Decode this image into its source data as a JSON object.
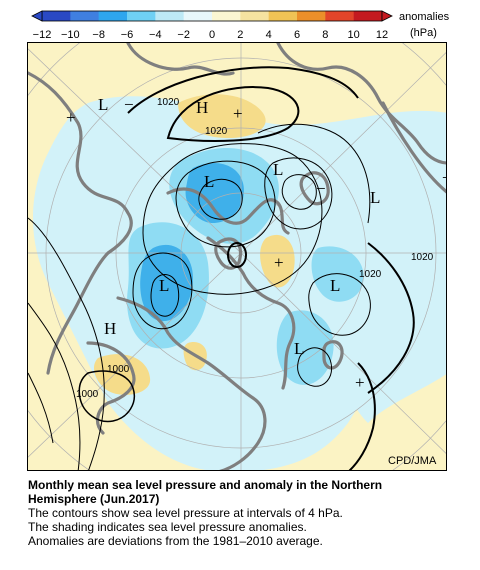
{
  "colorbar": {
    "ticks": [
      "−12",
      "−10",
      "−8",
      "−6",
      "−4",
      "−2",
      "0",
      "2",
      "4",
      "6",
      "8",
      "10",
      "12"
    ],
    "label_line1": "anomalies",
    "label_line2": "(hPa)",
    "colors": [
      "#2a49c4",
      "#3f7fe0",
      "#2ea6ee",
      "#6fd0f4",
      "#bde9f6",
      "#e8f7fb",
      "#fbf6d2",
      "#f5e3a0",
      "#f0c355",
      "#eb8f2a",
      "#e2452a",
      "#c41a20"
    ]
  },
  "map": {
    "labels": {
      "low_nw": "L",
      "high_n": "H",
      "plus_nw": "+",
      "minus_nw": "−",
      "plus_n": "+",
      "low_center": "L",
      "low_ne_upper": "L",
      "low_east": "L",
      "minus_east": "−",
      "plus_edge_east": "+",
      "low_west": "L",
      "plus_center_south": "+",
      "low_pacific": "L",
      "low_south": "L",
      "high_west": "H",
      "plus_south": "+"
    },
    "contour_labels": {
      "c1020_north": "1020",
      "c1020_ring": "1020",
      "c1020_east": "1020",
      "c1020_pacific": "1020",
      "c1000_a": "1000",
      "c1000_b": "1000"
    },
    "credit": "CPD/JMA",
    "colors": {
      "land_outline": "#7f7f7f",
      "neutral": "#ffffff",
      "weak_negative": "#d2f2f9",
      "negative": "#8fdcf3",
      "strong_negative": "#3fb0ea",
      "weak_positive": "#fbf3c4",
      "positive": "#f5dc8a"
    }
  },
  "caption": {
    "title_line1": "Monthly mean sea level pressure and anomaly in the Northern",
    "title_line2": "Hemisphere (Jun.2017)",
    "line1": "The contours show sea level pressure at intervals of 4 hPa.",
    "line2": "The shading indicates sea level pressure anomalies.",
    "line3": "Anomalies are deviations from the 1981–2010 average."
  }
}
